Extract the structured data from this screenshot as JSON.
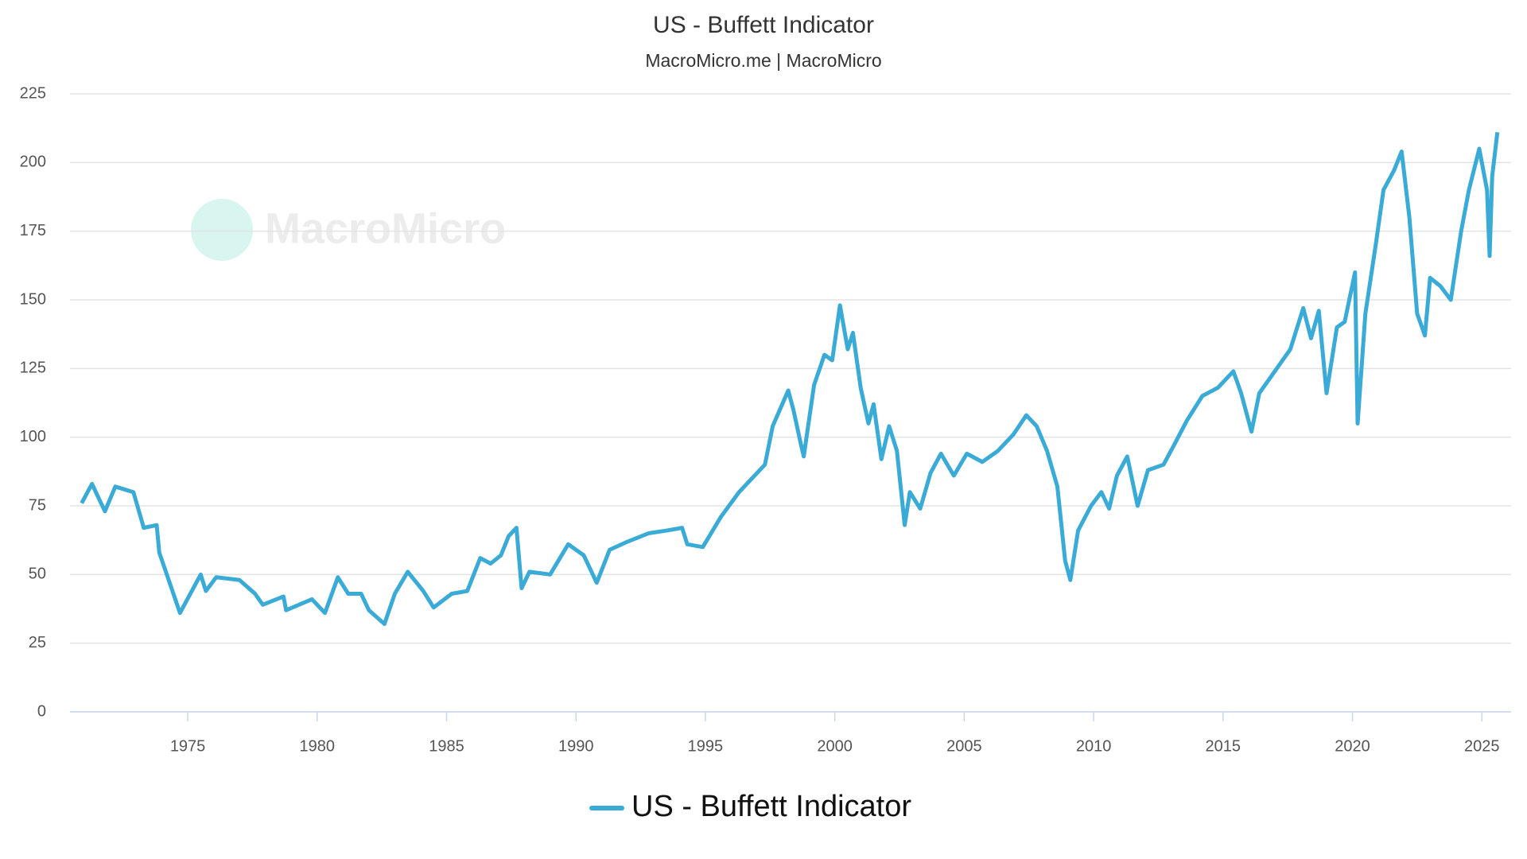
{
  "chart_data": {
    "type": "line",
    "title": "US - Buffett Indicator",
    "subtitle": "MacroMicro.me |  MacroMicro",
    "watermark": "MacroMicro",
    "x": [
      1970.9,
      1971.3,
      1971.8,
      1972.2,
      1972.9,
      1973.3,
      1973.8,
      1973.9,
      1974.7,
      1975.5,
      1975.7,
      1976.1,
      1977.0,
      1977.6,
      1977.9,
      1978.7,
      1978.8,
      1979.8,
      1980.3,
      1980.8,
      1981.2,
      1981.7,
      1982.0,
      1982.6,
      1983.0,
      1983.5,
      1984.1,
      1984.5,
      1985.2,
      1985.8,
      1986.3,
      1986.7,
      1987.1,
      1987.4,
      1987.7,
      1987.9,
      1988.2,
      1989.0,
      1989.7,
      1990.3,
      1990.8,
      1991.3,
      1992.0,
      1992.8,
      1993.5,
      1994.1,
      1994.3,
      1994.9,
      1995.6,
      1996.3,
      1996.7,
      1997.3,
      1997.6,
      1998.2,
      1998.4,
      1998.7,
      1998.8,
      1999.2,
      1999.6,
      1999.9,
      2000.2,
      2000.5,
      2000.7,
      2001.0,
      2001.3,
      2001.5,
      2001.8,
      2002.1,
      2002.4,
      2002.7,
      2002.9,
      2003.3,
      2003.7,
      2004.1,
      2004.6,
      2005.1,
      2005.7,
      2006.3,
      2006.9,
      2007.4,
      2007.8,
      2008.2,
      2008.6,
      2008.9,
      2009.1,
      2009.4,
      2009.9,
      2010.3,
      2010.6,
      2010.9,
      2011.3,
      2011.7,
      2012.1,
      2012.7,
      2013.1,
      2013.6,
      2014.2,
      2014.8,
      2015.4,
      2015.7,
      2016.1,
      2016.4,
      2017.0,
      2017.6,
      2018.1,
      2018.4,
      2018.7,
      2019.0,
      2019.4,
      2019.7,
      2020.1,
      2020.2,
      2020.5,
      2020.9,
      2021.2,
      2021.6,
      2021.9,
      2022.2,
      2022.5,
      2022.8,
      2023.0,
      2023.4,
      2023.8,
      2024.2,
      2024.5,
      2024.9,
      2025.2,
      2025.3,
      2025.4,
      2025.6
    ],
    "series": [
      {
        "name": "US - Buffett Indicator",
        "color": "#3aaad6",
        "values": [
          76,
          83,
          73,
          82,
          80,
          67,
          68,
          58,
          36,
          50,
          44,
          49,
          48,
          43,
          39,
          42,
          37,
          41,
          36,
          49,
          43,
          43,
          37,
          32,
          43,
          51,
          44,
          38,
          43,
          44,
          56,
          54,
          57,
          64,
          67,
          45,
          51,
          50,
          61,
          57,
          47,
          59,
          62,
          65,
          66,
          67,
          61,
          60,
          71,
          80,
          84,
          90,
          104,
          117,
          110,
          97,
          93,
          119,
          130,
          128,
          148,
          132,
          138,
          118,
          105,
          112,
          92,
          104,
          95,
          68,
          80,
          74,
          87,
          94,
          86,
          94,
          91,
          95,
          101,
          108,
          104,
          95,
          82,
          55,
          48,
          66,
          75,
          80,
          74,
          86,
          93,
          75,
          88,
          90,
          97,
          106,
          115,
          118,
          124,
          116,
          102,
          116,
          124,
          132,
          147,
          136,
          146,
          116,
          140,
          142,
          160,
          105,
          145,
          170,
          190,
          197,
          204,
          180,
          145,
          137,
          158,
          155,
          150,
          175,
          190,
          205,
          190,
          166,
          195,
          211
        ]
      }
    ],
    "xlim": [
      1970.45,
      2026.13
    ],
    "ylim": [
      0,
      225
    ],
    "xticks": [
      1975,
      1980,
      1985,
      1990,
      1995,
      2000,
      2005,
      2010,
      2015,
      2020,
      2025
    ],
    "yticks": [
      0,
      25,
      50,
      75,
      100,
      125,
      150,
      175,
      200,
      225
    ],
    "grid": true,
    "legend": "bottom"
  }
}
